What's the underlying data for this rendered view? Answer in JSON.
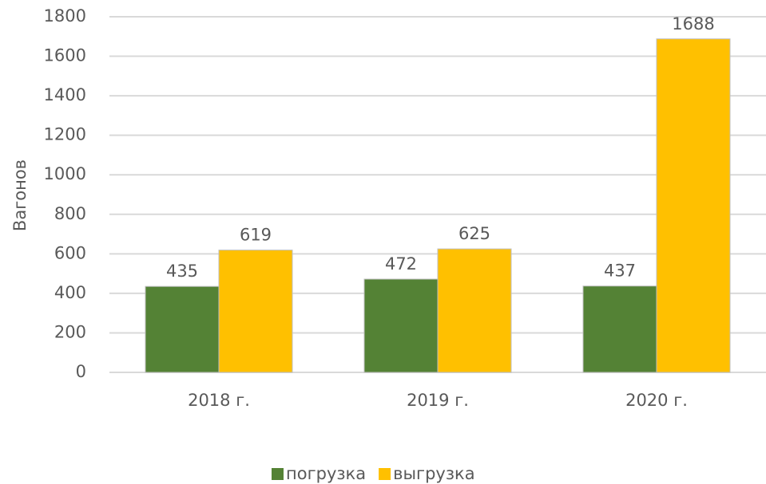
{
  "chart_data": {
    "type": "bar",
    "y_label": "Вагонов",
    "categories": [
      "2018 г.",
      "2019 г.",
      "2020 г."
    ],
    "series": [
      {
        "name": "погрузка",
        "color": "#548235",
        "values": [
          435,
          472,
          437
        ]
      },
      {
        "name": "выгрузка",
        "color": "#ffc000",
        "values": [
          619,
          625,
          1688
        ]
      }
    ],
    "ylim": [
      0,
      1800
    ],
    "yticks": [
      0,
      200,
      400,
      600,
      800,
      1000,
      1200,
      1400,
      1600,
      1800
    ],
    "grid": true,
    "legend": "bottom"
  }
}
